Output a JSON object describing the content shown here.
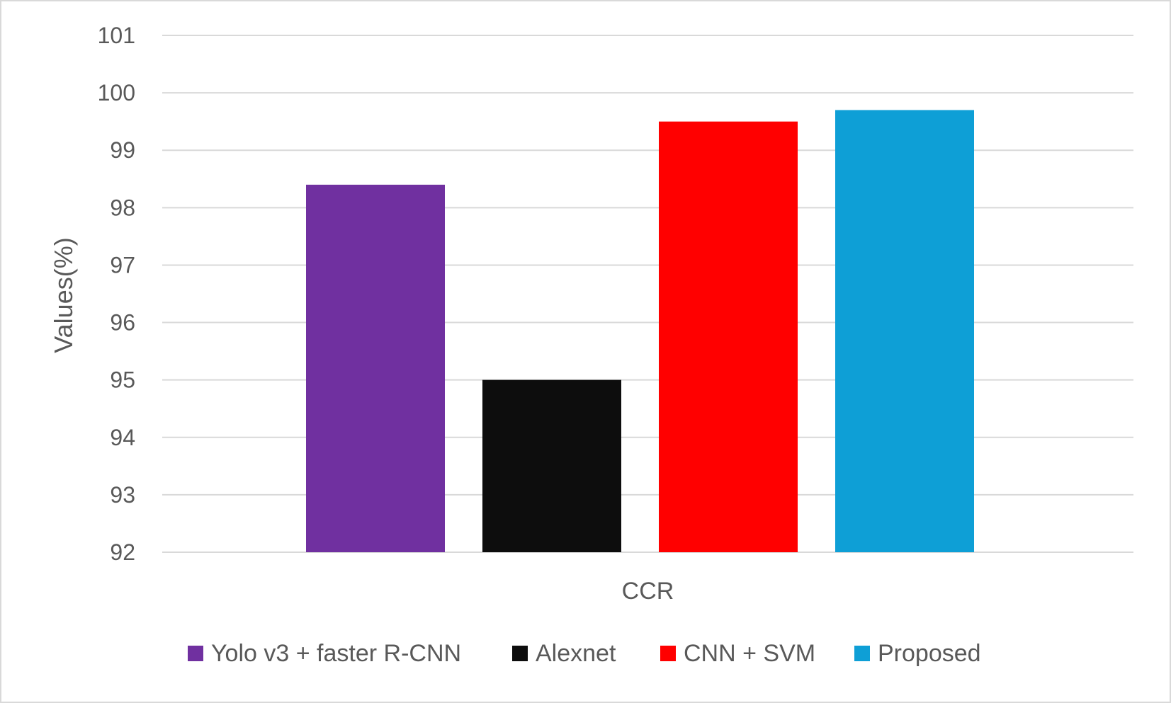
{
  "chart_data": {
    "type": "bar",
    "categories": [
      "CCR"
    ],
    "series": [
      {
        "name": "Yolo v3 + faster R-CNN",
        "values": [
          98.4
        ],
        "color": "#7030a0"
      },
      {
        "name": "Alexnet",
        "values": [
          95.0
        ],
        "color": "#0d0d0d"
      },
      {
        "name": "CNN + SVM",
        "values": [
          99.5
        ],
        "color": "#ff0000"
      },
      {
        "name": "Proposed",
        "values": [
          99.7
        ],
        "color": "#0e9fd6"
      }
    ],
    "title": "",
    "xlabel": "",
    "ylabel": "Values(%)",
    "ylim": [
      92,
      101
    ],
    "yticks": [
      92,
      93,
      94,
      95,
      96,
      97,
      98,
      99,
      100,
      101
    ],
    "grid": true,
    "legend_position": "bottom"
  }
}
